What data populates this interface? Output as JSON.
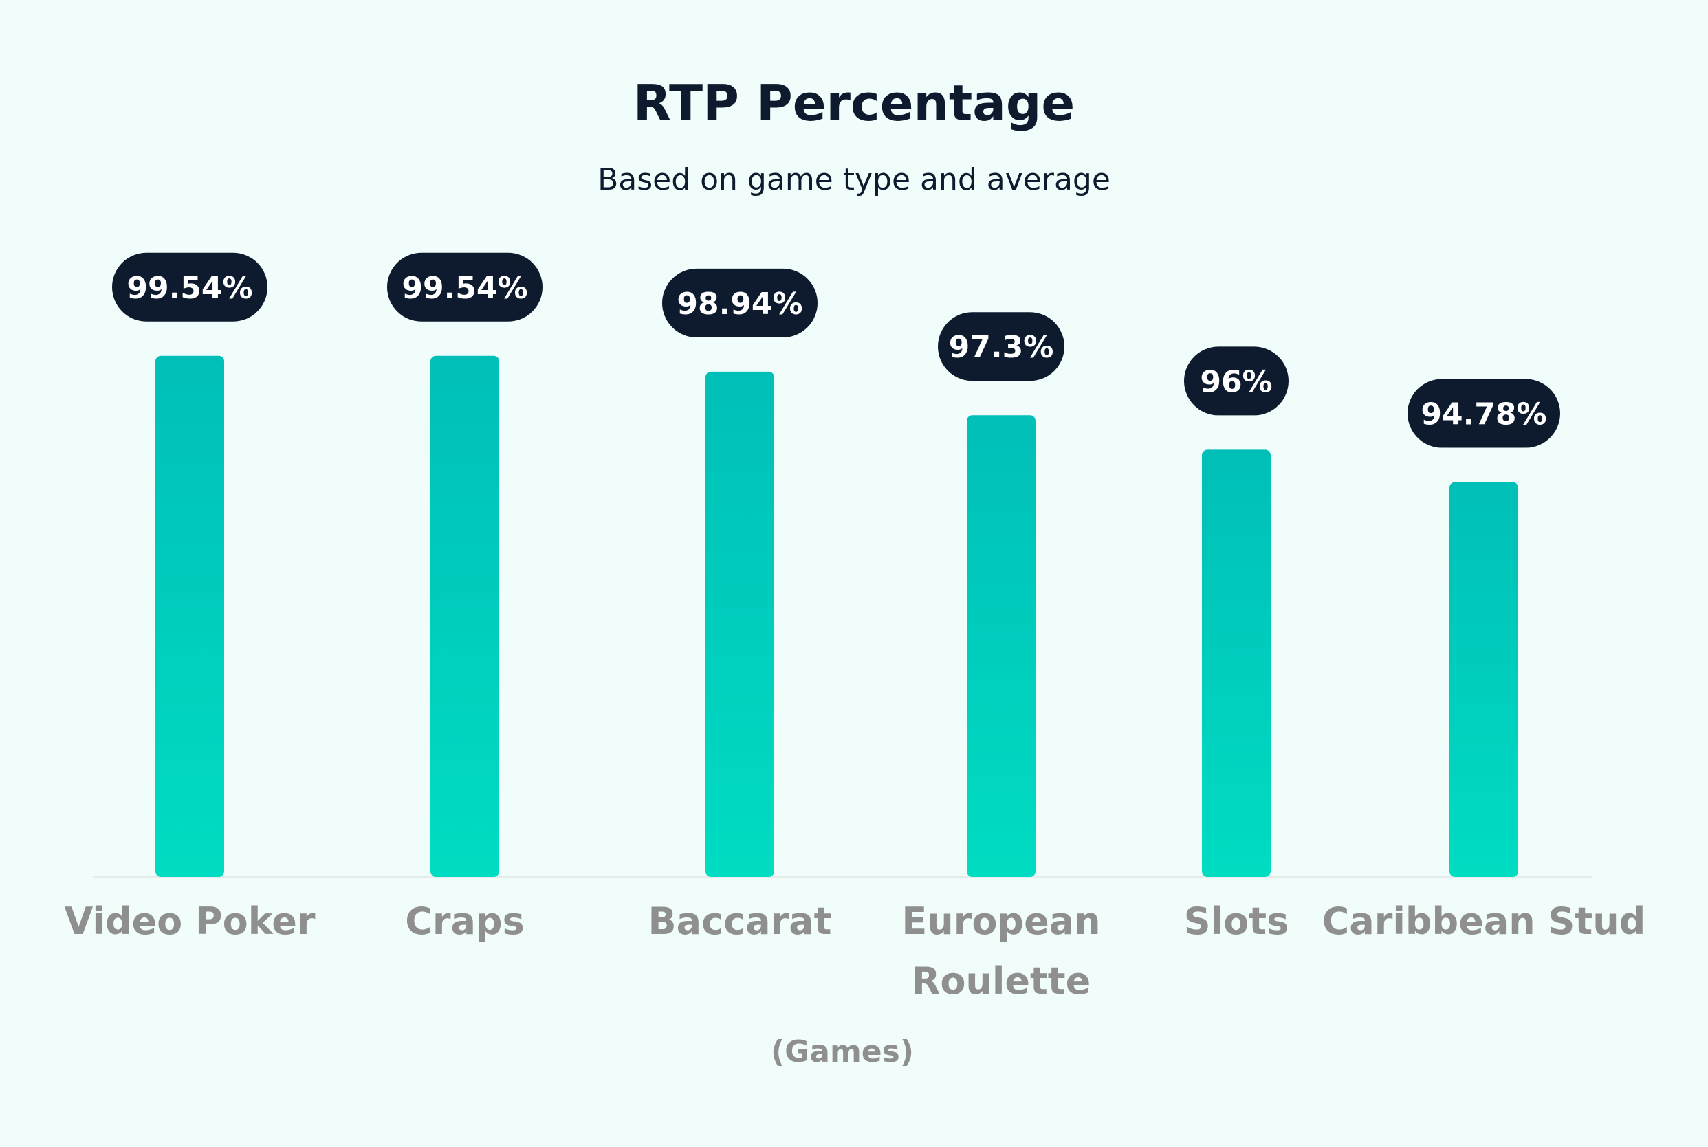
{
  "chart_data": {
    "type": "bar",
    "title": "RTP Percentage",
    "subtitle": "Based on game type and average",
    "xlabel": "(Games)",
    "ylabel": "",
    "categories": [
      "Video Poker",
      "Craps",
      "Baccarat",
      "European Roulette",
      "Slots",
      "Caribbean Stud"
    ],
    "category_lines": [
      [
        "Video Poker"
      ],
      [
        "Craps"
      ],
      [
        "Baccarat"
      ],
      [
        "European",
        "Roulette"
      ],
      [
        "Slots"
      ],
      [
        "Caribbean Stud"
      ]
    ],
    "values": [
      99.54,
      99.54,
      98.94,
      97.3,
      96,
      94.78
    ],
    "value_labels": [
      "99.54%",
      "99.54%",
      "98.94%",
      "97.3%",
      "96%",
      "94.78%"
    ],
    "ylim": [
      79.9,
      100
    ],
    "grid": false,
    "legend": "none",
    "colors": {
      "background": "#f0fdfa",
      "bar_top": "#00bfb8",
      "bar_bottom": "#00dcc2",
      "label_pill": "#0e1a2e",
      "baseline": "#e3ece9"
    }
  }
}
